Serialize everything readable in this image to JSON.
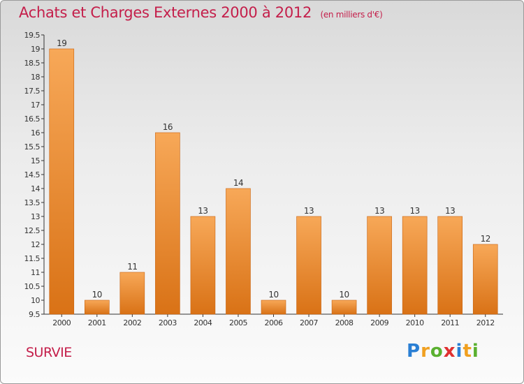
{
  "header": {
    "title": "Achats et Charges Externes 2000 à 2012",
    "subtitle": "(en milliers d'€)"
  },
  "footer": {
    "commune": "SURVIE",
    "logo_letters": [
      "P",
      "r",
      "o",
      "x",
      "i",
      "t",
      "i"
    ],
    "logo_colors": [
      "#2a7fd4",
      "#f0a020",
      "#5ab030",
      "#e03030",
      "#2a7fd4",
      "#f0a020",
      "#5ab030"
    ]
  },
  "colors": {
    "bar_light": "#f7a858",
    "bar_dark": "#d97216",
    "axis": "#333333",
    "text": "#333333",
    "title": "#c41e4a"
  },
  "chart_data": {
    "type": "bar",
    "categories": [
      "2000",
      "2001",
      "2002",
      "2003",
      "2004",
      "2005",
      "2006",
      "2007",
      "2008",
      "2009",
      "2010",
      "2011",
      "2012"
    ],
    "values": [
      19,
      10,
      11,
      16,
      13,
      14,
      10,
      13,
      10,
      13,
      13,
      13,
      12
    ],
    "ylim": [
      9.5,
      19.5
    ],
    "yticks": [
      9.5,
      10,
      10.5,
      11,
      11.5,
      12,
      12.5,
      13,
      13.5,
      14,
      14.5,
      15,
      15.5,
      16,
      16.5,
      17,
      17.5,
      18,
      18.5,
      19,
      19.5
    ],
    "ytick_labels": [
      "9.5",
      "10",
      "10.5",
      "11",
      "11.5",
      "12",
      "12.5",
      "13",
      "13.5",
      "14",
      "14.5",
      "15",
      "15.5",
      "16",
      "16.5",
      "17",
      "17.5",
      "18",
      "18.5",
      "19",
      "19.5"
    ],
    "grid": false
  }
}
